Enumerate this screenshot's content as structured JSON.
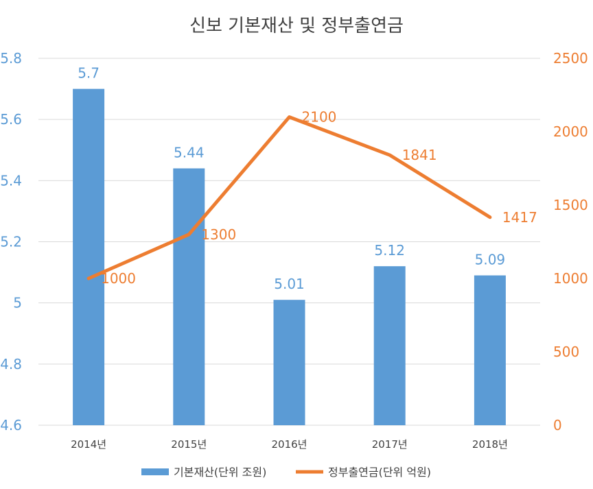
{
  "chart_data": {
    "type": "bar",
    "title": "신보 기본재산 및 정부출연금",
    "categories": [
      "2014년",
      "2015년",
      "2016년",
      "2017년",
      "2018년"
    ],
    "series": [
      {
        "name": "기본재산(단위 조원)",
        "type": "bar",
        "axis": "left",
        "color": "#5B9BD5",
        "values": [
          5.7,
          5.44,
          5.01,
          5.12,
          5.09
        ],
        "labels": [
          "5.7",
          "5.44",
          "5.01",
          "5.12",
          "5.09"
        ]
      },
      {
        "name": "정부출연금(단위 억원)",
        "type": "line",
        "axis": "right",
        "color": "#ED7D31",
        "values": [
          1000,
          1300,
          2100,
          1841,
          1417
        ],
        "labels": [
          "1000",
          "1300",
          "2100",
          "1841",
          "1417"
        ]
      }
    ],
    "y_left": {
      "min": 4.6,
      "max": 5.8,
      "ticks": [
        4.6,
        4.8,
        5,
        5.2,
        5.4,
        5.6,
        5.8
      ],
      "tick_labels": [
        "4.6",
        "4.8",
        "5",
        "5.2",
        "5.4",
        "5.6",
        "5.8"
      ]
    },
    "y_right": {
      "min": 0,
      "max": 2500,
      "ticks": [
        0,
        500,
        1000,
        1500,
        2000,
        2500
      ],
      "tick_labels": [
        "0",
        "500",
        "1000",
        "1500",
        "2000",
        "2500"
      ]
    },
    "grid": true,
    "legend_position": "bottom"
  }
}
